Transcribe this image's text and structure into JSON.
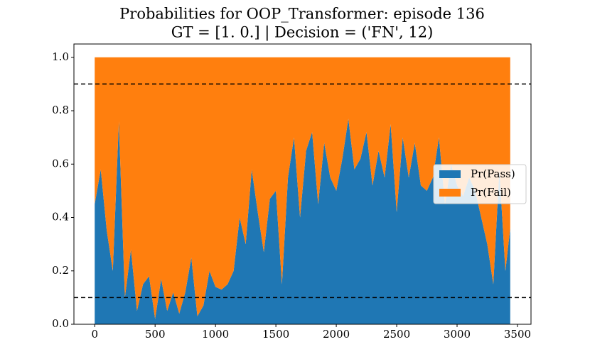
{
  "chart_data": {
    "type": "stacked_area",
    "title": [
      "Probabilities for OOP_Transformer: episode 136",
      "GT = [1. 0.] | Decision = ('FN', 12)"
    ],
    "x": [
      0,
      50,
      100,
      150,
      200,
      250,
      300,
      350,
      400,
      450,
      500,
      550,
      600,
      650,
      700,
      750,
      800,
      850,
      900,
      950,
      1000,
      1050,
      1100,
      1150,
      1200,
      1250,
      1300,
      1350,
      1400,
      1450,
      1500,
      1550,
      1600,
      1650,
      1700,
      1750,
      1800,
      1850,
      1900,
      1950,
      2000,
      2050,
      2100,
      2150,
      2200,
      2250,
      2300,
      2350,
      2400,
      2450,
      2500,
      2550,
      2600,
      2650,
      2700,
      2750,
      2800,
      2850,
      2900,
      2950,
      3000,
      3050,
      3100,
      3150,
      3200,
      3250,
      3300,
      3350,
      3400,
      3440
    ],
    "series": [
      {
        "name": "Pr(Pass)",
        "color": "#1f77b4",
        "values": [
          0.45,
          0.58,
          0.35,
          0.2,
          0.76,
          0.1,
          0.28,
          0.05,
          0.15,
          0.18,
          0.02,
          0.17,
          0.05,
          0.12,
          0.04,
          0.12,
          0.25,
          0.03,
          0.07,
          0.2,
          0.14,
          0.13,
          0.15,
          0.2,
          0.4,
          0.3,
          0.58,
          0.42,
          0.27,
          0.47,
          0.5,
          0.15,
          0.55,
          0.7,
          0.4,
          0.65,
          0.72,
          0.45,
          0.68,
          0.55,
          0.5,
          0.62,
          0.77,
          0.58,
          0.62,
          0.72,
          0.52,
          0.65,
          0.55,
          0.75,
          0.42,
          0.7,
          0.55,
          0.68,
          0.52,
          0.5,
          0.55,
          0.7,
          0.45,
          0.6,
          0.52,
          0.48,
          0.55,
          0.5,
          0.4,
          0.3,
          0.15,
          0.58,
          0.2,
          0.36
        ]
      },
      {
        "name": "Pr(Fail)",
        "color": "#ff7f0e",
        "values": [
          0.55,
          0.42,
          0.65,
          0.8,
          0.24,
          0.9,
          0.72,
          0.95,
          0.85,
          0.82,
          0.98,
          0.83,
          0.95,
          0.88,
          0.96,
          0.88,
          0.75,
          0.97,
          0.93,
          0.8,
          0.86,
          0.87,
          0.85,
          0.8,
          0.6,
          0.7,
          0.42,
          0.58,
          0.73,
          0.53,
          0.5,
          0.85,
          0.45,
          0.3,
          0.6,
          0.35,
          0.28,
          0.55,
          0.32,
          0.45,
          0.5,
          0.38,
          0.23,
          0.42,
          0.38,
          0.28,
          0.48,
          0.35,
          0.45,
          0.25,
          0.58,
          0.3,
          0.45,
          0.32,
          0.48,
          0.5,
          0.45,
          0.3,
          0.55,
          0.4,
          0.48,
          0.52,
          0.45,
          0.5,
          0.6,
          0.7,
          0.85,
          0.42,
          0.8,
          0.64
        ]
      }
    ],
    "hlines": [
      0.9,
      0.1
    ],
    "xlim": [
      -172,
      3612
    ],
    "ylim": [
      0,
      1.05
    ],
    "xticks": [
      0,
      500,
      1000,
      1500,
      2000,
      2500,
      3000,
      3500
    ],
    "yticks": [
      {
        "value": 0,
        "label": "0.0"
      },
      0.2,
      0.4,
      0.6,
      0.8,
      {
        "value": 1,
        "label": "1.0"
      }
    ],
    "legend": "right"
  }
}
